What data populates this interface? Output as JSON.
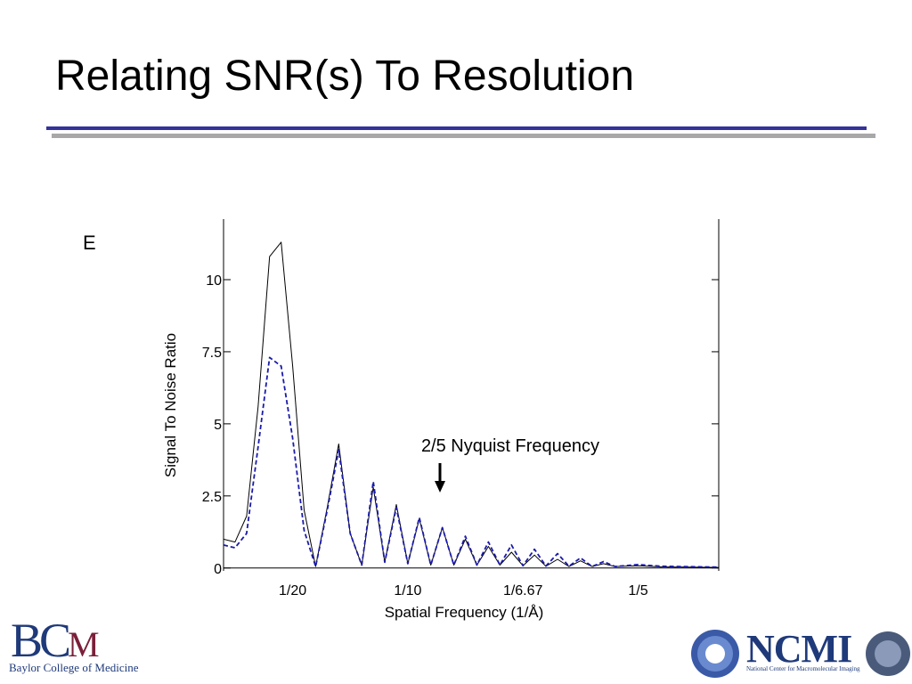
{
  "slide": {
    "title": "Relating SNR(s) To Resolution",
    "panel_letter": "E"
  },
  "chart_data": {
    "type": "line",
    "title": "",
    "xlabel": "Spatial Frequency (1/Å)",
    "ylabel": "Signal To Noise Ratio",
    "xlim": [
      0.02,
      0.235
    ],
    "ylim": [
      -0.1,
      12.1
    ],
    "x_ticks": [
      {
        "value": 0.05,
        "label": "1/20"
      },
      {
        "value": 0.1,
        "label": "1/10"
      },
      {
        "value": 0.15,
        "label": "1/6.67"
      },
      {
        "value": 0.2,
        "label": "1/5"
      }
    ],
    "y_ticks": [
      {
        "value": 0,
        "label": "0"
      },
      {
        "value": 2.5,
        "label": "2.5"
      },
      {
        "value": 5,
        "label": "5"
      },
      {
        "value": 7.5,
        "label": "7.5"
      },
      {
        "value": 10,
        "label": "10"
      }
    ],
    "grid": false,
    "annotation": {
      "text": "2/5 Nyquist Frequency",
      "x": 0.1,
      "y": 2.7
    },
    "series": [
      {
        "style": "solid",
        "color": "#000000",
        "x": [
          0.02,
          0.025,
          0.03,
          0.035,
          0.04,
          0.045,
          0.05,
          0.055,
          0.06,
          0.065,
          0.07,
          0.075,
          0.08,
          0.085,
          0.09,
          0.095,
          0.1,
          0.105,
          0.11,
          0.115,
          0.12,
          0.125,
          0.13,
          0.135,
          0.14,
          0.145,
          0.15,
          0.155,
          0.16,
          0.165,
          0.17,
          0.175,
          0.18,
          0.185,
          0.19,
          0.2,
          0.21,
          0.235
        ],
        "y": [
          1.0,
          0.9,
          1.8,
          5.6,
          10.8,
          11.3,
          7.0,
          2.0,
          0.05,
          2.1,
          4.3,
          1.2,
          0.1,
          2.8,
          0.2,
          2.2,
          0.15,
          1.7,
          0.1,
          1.4,
          0.1,
          1.0,
          0.1,
          0.75,
          0.1,
          0.55,
          0.08,
          0.45,
          0.06,
          0.3,
          0.05,
          0.25,
          0.05,
          0.15,
          0.05,
          0.08,
          0.04,
          0.02
        ]
      },
      {
        "style": "dashed",
        "color": "#1a1aaa",
        "x": [
          0.02,
          0.025,
          0.03,
          0.035,
          0.04,
          0.045,
          0.05,
          0.055,
          0.06,
          0.065,
          0.07,
          0.075,
          0.08,
          0.085,
          0.09,
          0.095,
          0.1,
          0.105,
          0.11,
          0.115,
          0.12,
          0.125,
          0.13,
          0.135,
          0.14,
          0.145,
          0.15,
          0.155,
          0.16,
          0.165,
          0.17,
          0.175,
          0.18,
          0.185,
          0.19,
          0.2,
          0.21,
          0.235
        ],
        "y": [
          0.8,
          0.7,
          1.2,
          4.2,
          7.3,
          7.0,
          4.5,
          1.3,
          0.05,
          2.0,
          4.1,
          1.2,
          0.1,
          3.0,
          0.2,
          2.1,
          0.15,
          1.75,
          0.1,
          1.4,
          0.1,
          1.1,
          0.1,
          0.9,
          0.1,
          0.8,
          0.08,
          0.65,
          0.07,
          0.5,
          0.06,
          0.35,
          0.05,
          0.22,
          0.05,
          0.12,
          0.06,
          0.03
        ]
      }
    ]
  },
  "logos": {
    "left_mark_main": "BC",
    "left_mark_tail": "M",
    "left_text": "Baylor College of Medicine",
    "right_mark": "NCMI",
    "right_text": "National Center for Macromolecular Imaging"
  }
}
